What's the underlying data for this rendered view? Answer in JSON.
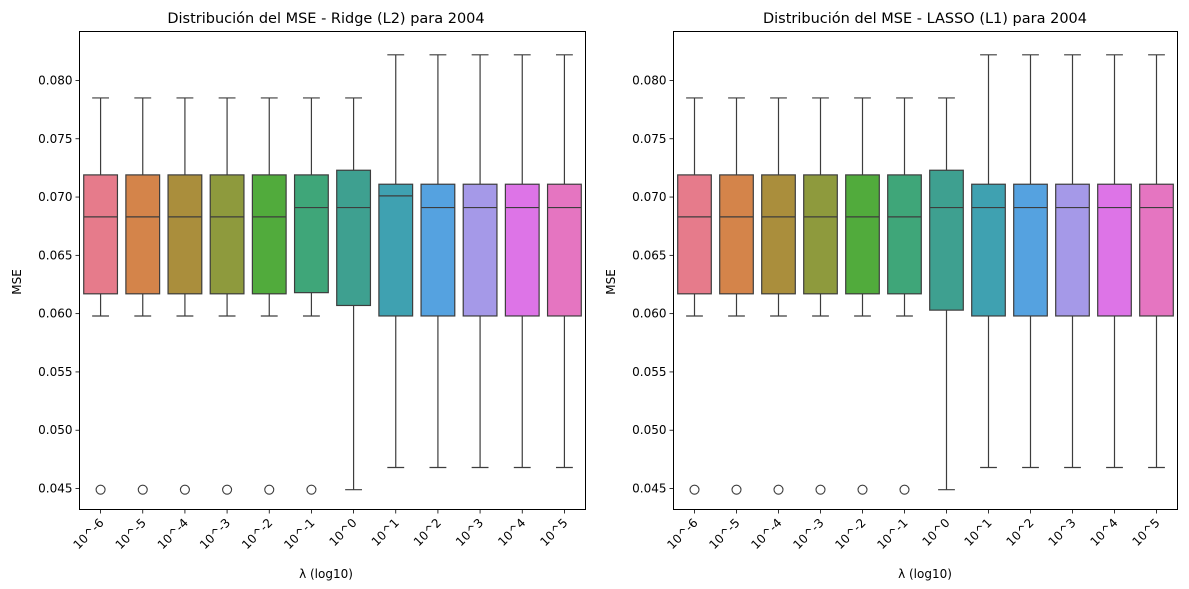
{
  "chart_data": [
    {
      "type": "box",
      "title": "Distribución del MSE - Ridge (L2) para 2004",
      "xlabel": "λ (log10)",
      "ylabel": "MSE",
      "ylim": [
        0.0432,
        0.0842
      ],
      "yticks": [
        "0.045",
        "0.050",
        "0.055",
        "0.060",
        "0.065",
        "0.070",
        "0.075",
        "0.080"
      ],
      "ytick_values": [
        0.045,
        0.05,
        0.055,
        0.06,
        0.065,
        0.07,
        0.075,
        0.08
      ],
      "categories": [
        "10^-6",
        "10^-5",
        "10^-4",
        "10^-3",
        "10^-2",
        "10^-1",
        "10^0",
        "10^1",
        "10^2",
        "10^3",
        "10^4",
        "10^5"
      ],
      "boxes": [
        {
          "whislo": 0.0598,
          "q1": 0.0617,
          "med": 0.0683,
          "q3": 0.0719,
          "whishi": 0.0785,
          "fliers": [
            0.0449
          ]
        },
        {
          "whislo": 0.0598,
          "q1": 0.0617,
          "med": 0.0683,
          "q3": 0.0719,
          "whishi": 0.0785,
          "fliers": [
            0.0449
          ]
        },
        {
          "whislo": 0.0598,
          "q1": 0.0617,
          "med": 0.0683,
          "q3": 0.0719,
          "whishi": 0.0785,
          "fliers": [
            0.0449
          ]
        },
        {
          "whislo": 0.0598,
          "q1": 0.0617,
          "med": 0.0683,
          "q3": 0.0719,
          "whishi": 0.0785,
          "fliers": [
            0.0449
          ]
        },
        {
          "whislo": 0.0598,
          "q1": 0.0617,
          "med": 0.0683,
          "q3": 0.0719,
          "whishi": 0.0785,
          "fliers": [
            0.0449
          ]
        },
        {
          "whislo": 0.0598,
          "q1": 0.0618,
          "med": 0.0691,
          "q3": 0.0719,
          "whishi": 0.0785,
          "fliers": [
            0.0449
          ]
        },
        {
          "whislo": 0.0449,
          "q1": 0.0607,
          "med": 0.0691,
          "q3": 0.0723,
          "whishi": 0.0785,
          "fliers": []
        },
        {
          "whislo": 0.0468,
          "q1": 0.0598,
          "med": 0.0701,
          "q3": 0.0711,
          "whishi": 0.0822,
          "fliers": []
        },
        {
          "whislo": 0.0468,
          "q1": 0.0598,
          "med": 0.0691,
          "q3": 0.0711,
          "whishi": 0.0822,
          "fliers": []
        },
        {
          "whislo": 0.0468,
          "q1": 0.0598,
          "med": 0.0691,
          "q3": 0.0711,
          "whishi": 0.0822,
          "fliers": []
        },
        {
          "whislo": 0.0468,
          "q1": 0.0598,
          "med": 0.0691,
          "q3": 0.0711,
          "whishi": 0.0822,
          "fliers": []
        },
        {
          "whislo": 0.0468,
          "q1": 0.0598,
          "med": 0.0691,
          "q3": 0.0711,
          "whishi": 0.0822,
          "fliers": []
        }
      ],
      "colors": [
        "#e67b8b",
        "#d4844a",
        "#aa8e3c",
        "#8e9a3d",
        "#51ab3c",
        "#3fa679",
        "#3ea090",
        "#3fa1b1",
        "#55a2e0",
        "#a599e8",
        "#dd74e7",
        "#e575c1"
      ],
      "grid": false,
      "legend": "none"
    },
    {
      "type": "box",
      "title": "Distribución del MSE - LASSO (L1) para 2004",
      "xlabel": "λ (log10)",
      "ylabel": "MSE",
      "ylim": [
        0.0432,
        0.0842
      ],
      "yticks": [
        "0.045",
        "0.050",
        "0.055",
        "0.060",
        "0.065",
        "0.070",
        "0.075",
        "0.080"
      ],
      "ytick_values": [
        0.045,
        0.05,
        0.055,
        0.06,
        0.065,
        0.07,
        0.075,
        0.08
      ],
      "categories": [
        "10^-6",
        "10^-5",
        "10^-4",
        "10^-3",
        "10^-2",
        "10^-1",
        "10^0",
        "10^1",
        "10^2",
        "10^3",
        "10^4",
        "10^5"
      ],
      "boxes": [
        {
          "whislo": 0.0598,
          "q1": 0.0617,
          "med": 0.0683,
          "q3": 0.0719,
          "whishi": 0.0785,
          "fliers": [
            0.0449
          ]
        },
        {
          "whislo": 0.0598,
          "q1": 0.0617,
          "med": 0.0683,
          "q3": 0.0719,
          "whishi": 0.0785,
          "fliers": [
            0.0449
          ]
        },
        {
          "whislo": 0.0598,
          "q1": 0.0617,
          "med": 0.0683,
          "q3": 0.0719,
          "whishi": 0.0785,
          "fliers": [
            0.0449
          ]
        },
        {
          "whislo": 0.0598,
          "q1": 0.0617,
          "med": 0.0683,
          "q3": 0.0719,
          "whishi": 0.0785,
          "fliers": [
            0.0449
          ]
        },
        {
          "whislo": 0.0598,
          "q1": 0.0617,
          "med": 0.0683,
          "q3": 0.0719,
          "whishi": 0.0785,
          "fliers": [
            0.0449
          ]
        },
        {
          "whislo": 0.0598,
          "q1": 0.0617,
          "med": 0.0683,
          "q3": 0.0719,
          "whishi": 0.0785,
          "fliers": [
            0.0449
          ]
        },
        {
          "whislo": 0.0449,
          "q1": 0.0603,
          "med": 0.0691,
          "q3": 0.0723,
          "whishi": 0.0785,
          "fliers": []
        },
        {
          "whislo": 0.0468,
          "q1": 0.0598,
          "med": 0.0691,
          "q3": 0.0711,
          "whishi": 0.0822,
          "fliers": []
        },
        {
          "whislo": 0.0468,
          "q1": 0.0598,
          "med": 0.0691,
          "q3": 0.0711,
          "whishi": 0.0822,
          "fliers": []
        },
        {
          "whislo": 0.0468,
          "q1": 0.0598,
          "med": 0.0691,
          "q3": 0.0711,
          "whishi": 0.0822,
          "fliers": []
        },
        {
          "whislo": 0.0468,
          "q1": 0.0598,
          "med": 0.0691,
          "q3": 0.0711,
          "whishi": 0.0822,
          "fliers": []
        },
        {
          "whislo": 0.0468,
          "q1": 0.0598,
          "med": 0.0691,
          "q3": 0.0711,
          "whishi": 0.0822,
          "fliers": []
        }
      ],
      "colors": [
        "#e67b8b",
        "#d4844a",
        "#aa8e3c",
        "#8e9a3d",
        "#51ab3c",
        "#3fa679",
        "#3ea090",
        "#3fa1b1",
        "#55a2e0",
        "#a599e8",
        "#dd74e7",
        "#e575c1"
      ],
      "grid": false,
      "legend": "none"
    }
  ]
}
